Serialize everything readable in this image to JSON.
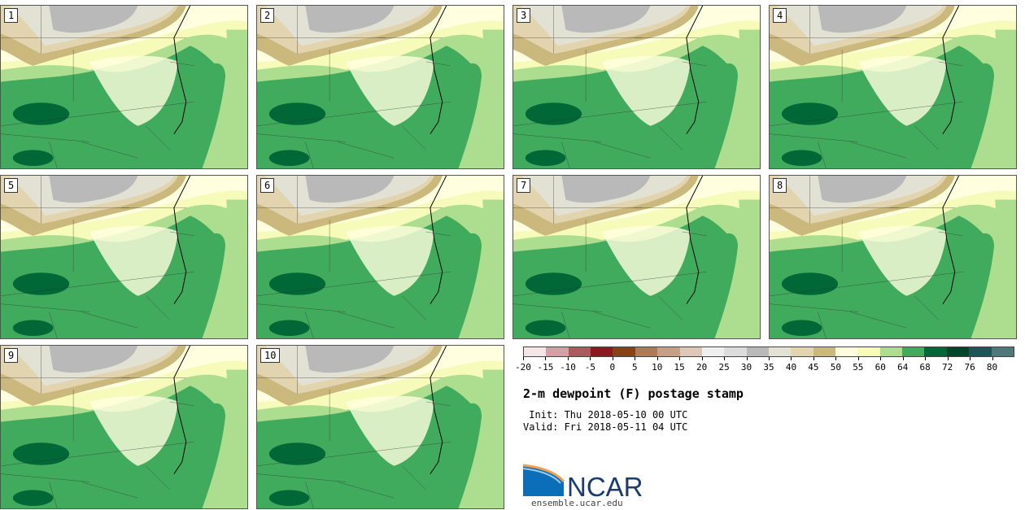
{
  "panels": [
    {
      "label": "1"
    },
    {
      "label": "2"
    },
    {
      "label": "3"
    },
    {
      "label": "4"
    },
    {
      "label": "5"
    },
    {
      "label": "6"
    },
    {
      "label": "7"
    },
    {
      "label": "8"
    },
    {
      "label": "9"
    },
    {
      "label": "10"
    }
  ],
  "colorbar": {
    "colors": [
      "#f4e6e8",
      "#d4a0a6",
      "#ad5a5f",
      "#8c1820",
      "#8a4114",
      "#ad7b59",
      "#c5a087",
      "#dec6b8",
      "#efefef",
      "#dcdcdc",
      "#b9b9b9",
      "#e2e2d4",
      "#e2d4ae",
      "#cbb87c",
      "#ffffe0",
      "#f7fbb9",
      "#addd8e",
      "#41ab5d",
      "#006837",
      "#004529",
      "#1d5559",
      "#50787a"
    ],
    "ticks": [
      "-20",
      "-15",
      "-10",
      "-5",
      "0",
      "5",
      "10",
      "15",
      "20",
      "25",
      "30",
      "35",
      "40",
      "45",
      "50",
      "55",
      "60",
      "64",
      "68",
      "72",
      "76",
      "80"
    ]
  },
  "title": "2-m dewpoint (F) postage stamp",
  "init": " Init: Thu 2018-05-10 00 UTC",
  "valid": "Valid: Fri 2018-05-11 04 UTC",
  "logo": {
    "text": "NCAR"
  },
  "url": "ensemble.ucar.edu"
}
